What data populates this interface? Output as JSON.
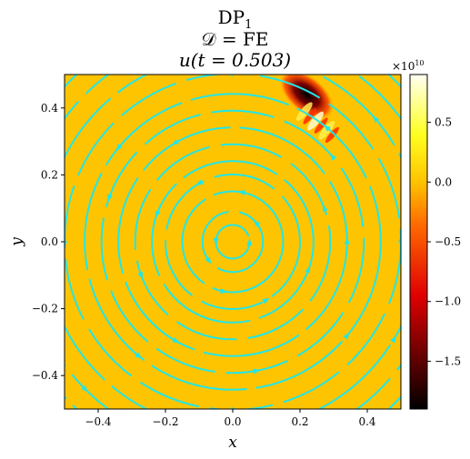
{
  "chart_data": {
    "type": "heatmap",
    "title_lines": [
      "DP",
      "1",
      "𝒟 = FE",
      "u(t = 0.503)"
    ],
    "xlabel": "x",
    "ylabel": "y",
    "xlim": [
      -0.5,
      0.5
    ],
    "ylim": [
      -0.5,
      0.5
    ],
    "xticks": [
      -0.4,
      -0.2,
      0.0,
      0.2,
      0.4
    ],
    "xtick_labels": [
      "−0.4",
      "−0.2",
      "0.0",
      "0.2",
      "0.4"
    ],
    "yticks": [
      -0.4,
      -0.2,
      0.0,
      0.2,
      0.4
    ],
    "ytick_labels": [
      "−0.4",
      "−0.2",
      "0.0",
      "0.2",
      "0.4"
    ],
    "background_value": 0.0,
    "colorbar": {
      "colormap": "hot",
      "vmin": -1.9,
      "vmax": 0.9,
      "ticks": [
        0.5,
        0.0,
        -0.5,
        -1.0,
        -1.5
      ],
      "tick_labels": [
        "0.5",
        "0.0",
        "−0.5",
        "−1.0",
        "−1.5"
      ],
      "multiplier": "×10",
      "multiplier_exponent": "10"
    },
    "feature": {
      "description": "oscillating pulse",
      "center": [
        0.22,
        0.44
      ],
      "min_value": -1.9,
      "max_value": 0.8
    },
    "streamlines": {
      "pattern": "concentric circles",
      "center": [
        0.0,
        0.0
      ],
      "radii": [
        0.05,
        0.09,
        0.15,
        0.2,
        0.24,
        0.29,
        0.34,
        0.39,
        0.44,
        0.5,
        0.56,
        0.62,
        0.68
      ],
      "color": "#22e6e6"
    },
    "grid": false
  },
  "colors": {
    "field_background": "#ffc400",
    "streamline": "#22e6e6"
  }
}
